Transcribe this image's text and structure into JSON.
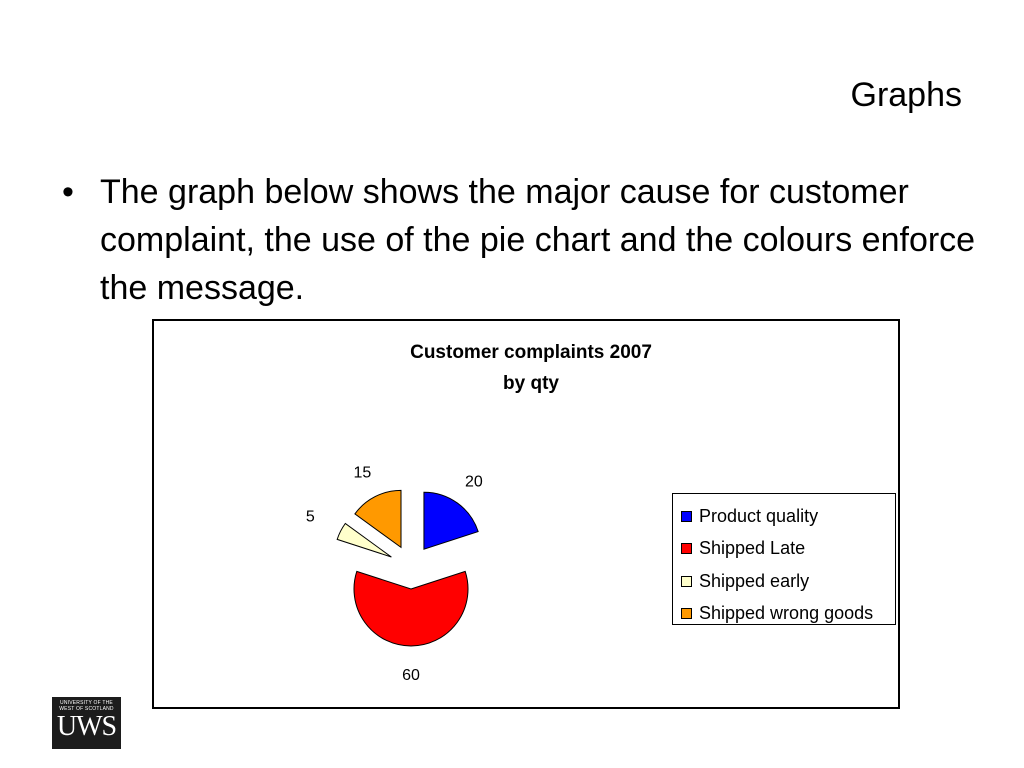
{
  "slide": {
    "title": "Graphs",
    "bullet_symbol": "•",
    "bullet_text": "The graph below shows the major cause for customer complaint, the use of the pie chart and the colours enforce the message."
  },
  "logo": {
    "small_text": "University of the\nWest of Scotland",
    "big_text": "UWS"
  },
  "chart_data": {
    "type": "pie",
    "exploded": true,
    "title": "Customer complaints 2007",
    "subtitle": "by qty",
    "legend_position": "right",
    "slices": [
      {
        "label": "Product quality",
        "value": 20,
        "color": "#0000ff"
      },
      {
        "label": "Shipped Late",
        "value": 60,
        "color": "#ff0000"
      },
      {
        "label": "Shipped early",
        "value": 5,
        "color": "#ffffcc"
      },
      {
        "label": "Shipped wrong goods",
        "value": 15,
        "color": "#ff9900"
      }
    ]
  }
}
